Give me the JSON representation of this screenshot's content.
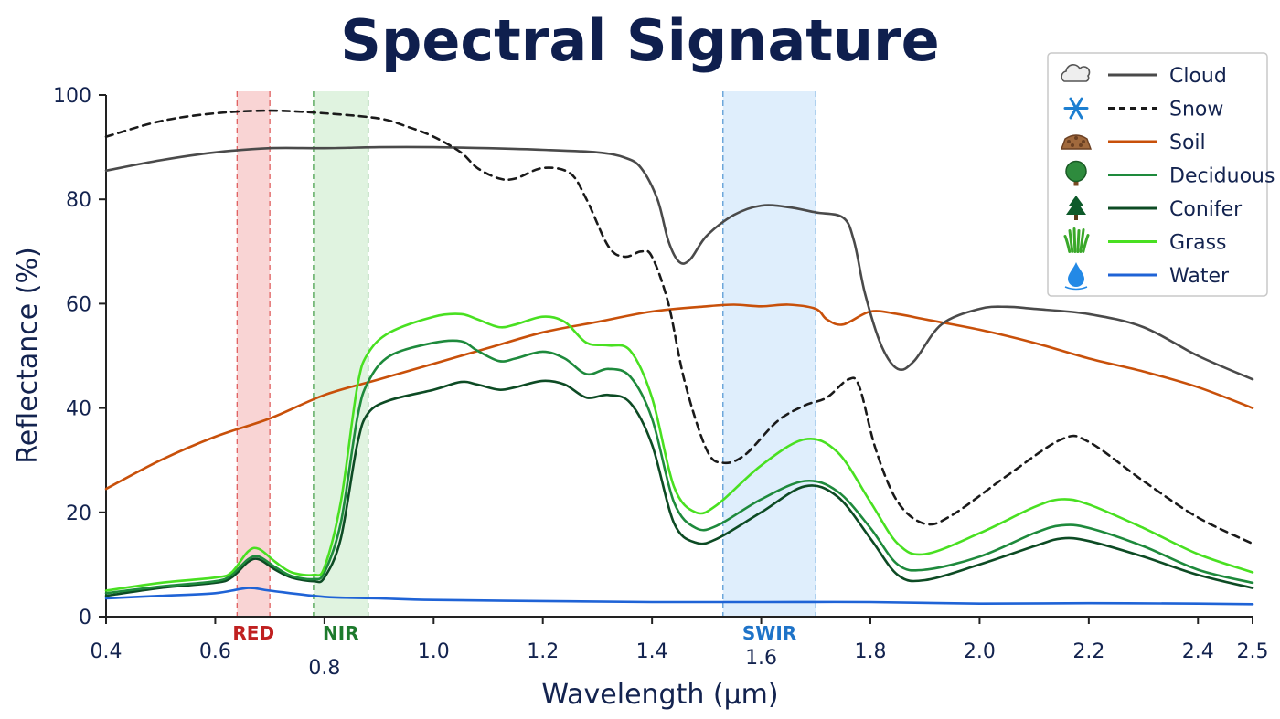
{
  "chart_data": {
    "type": "line",
    "title": "Spectral Signature",
    "xlabel": "Wavelength (µm)",
    "ylabel": "Reflectance (%)",
    "xlim": [
      0.4,
      2.5
    ],
    "ylim": [
      0,
      100
    ],
    "x_ticks": [
      "0.4",
      "0.6",
      "0.8",
      "1.0",
      "1.2",
      "1.4",
      "1.6",
      "1.8",
      "2.0",
      "2.2",
      "2.4",
      "2.5"
    ],
    "y_ticks": [
      "0",
      "20",
      "40",
      "60",
      "80",
      "100"
    ],
    "grid": false,
    "legend_position": "top-right",
    "bands": [
      {
        "label": "RED",
        "range": [
          0.64,
          0.7
        ],
        "color": "#f7c6c6",
        "edge": "#e06060",
        "text_color": "#c02020"
      },
      {
        "label": "NIR",
        "range": [
          0.78,
          0.88
        ],
        "color": "#d6efd6",
        "edge": "#49a04d",
        "text_color": "#1d7a2c"
      },
      {
        "label": "SWIR",
        "range": [
          1.53,
          1.7
        ],
        "color": "#d4e8fb",
        "edge": "#5a9bd5",
        "text_color": "#1e73c8"
      }
    ],
    "series": [
      {
        "name": "Cloud",
        "icon": "cloud-icon",
        "color": "#4a4a4a",
        "dash": "solid",
        "points": [
          [
            0.4,
            85.5
          ],
          [
            0.5,
            87.5
          ],
          [
            0.6,
            89
          ],
          [
            0.7,
            89.8
          ],
          [
            0.8,
            89.8
          ],
          [
            0.9,
            90
          ],
          [
            1.0,
            90
          ],
          [
            1.1,
            89.8
          ],
          [
            1.2,
            89.5
          ],
          [
            1.3,
            89
          ],
          [
            1.35,
            88
          ],
          [
            1.38,
            86
          ],
          [
            1.41,
            80
          ],
          [
            1.43,
            72
          ],
          [
            1.45,
            68
          ],
          [
            1.47,
            68.5
          ],
          [
            1.5,
            73
          ],
          [
            1.55,
            77
          ],
          [
            1.6,
            78.8
          ],
          [
            1.65,
            78.5
          ],
          [
            1.7,
            77.5
          ],
          [
            1.75,
            76.5
          ],
          [
            1.77,
            72
          ],
          [
            1.79,
            62
          ],
          [
            1.82,
            52
          ],
          [
            1.85,
            47.5
          ],
          [
            1.88,
            49
          ],
          [
            1.93,
            56
          ],
          [
            2.0,
            59
          ],
          [
            2.05,
            59.4
          ],
          [
            2.1,
            59
          ],
          [
            2.2,
            58
          ],
          [
            2.3,
            55.5
          ],
          [
            2.4,
            50
          ],
          [
            2.5,
            45.5
          ]
        ]
      },
      {
        "name": "Snow",
        "icon": "snowflake-icon",
        "color": "#1a1a1a",
        "dash": "dashed",
        "points": [
          [
            0.4,
            92
          ],
          [
            0.5,
            95
          ],
          [
            0.6,
            96.5
          ],
          [
            0.7,
            97
          ],
          [
            0.8,
            96.5
          ],
          [
            0.9,
            95.5
          ],
          [
            0.95,
            94
          ],
          [
            1.0,
            92
          ],
          [
            1.05,
            89
          ],
          [
            1.08,
            86
          ],
          [
            1.12,
            84
          ],
          [
            1.15,
            84
          ],
          [
            1.2,
            86
          ],
          [
            1.25,
            85
          ],
          [
            1.28,
            80
          ],
          [
            1.32,
            71
          ],
          [
            1.35,
            69
          ],
          [
            1.38,
            70
          ],
          [
            1.4,
            69
          ],
          [
            1.43,
            60
          ],
          [
            1.46,
            45
          ],
          [
            1.5,
            32
          ],
          [
            1.53,
            29.5
          ],
          [
            1.57,
            31
          ],
          [
            1.63,
            37.5
          ],
          [
            1.68,
            40.5
          ],
          [
            1.72,
            42
          ],
          [
            1.76,
            45.5
          ],
          [
            1.78,
            44
          ],
          [
            1.81,
            32
          ],
          [
            1.85,
            22
          ],
          [
            1.9,
            17.8
          ],
          [
            1.95,
            19.5
          ],
          [
            2.05,
            27
          ],
          [
            2.15,
            34
          ],
          [
            2.2,
            33.5
          ],
          [
            2.3,
            26
          ],
          [
            2.4,
            19
          ],
          [
            2.5,
            14
          ]
        ]
      },
      {
        "name": "Soil",
        "icon": "soil-icon",
        "color": "#c8500a",
        "dash": "solid",
        "points": [
          [
            0.4,
            24.5
          ],
          [
            0.5,
            30
          ],
          [
            0.6,
            34.5
          ],
          [
            0.7,
            38
          ],
          [
            0.8,
            42.5
          ],
          [
            0.9,
            45.5
          ],
          [
            1.0,
            48.5
          ],
          [
            1.1,
            51.5
          ],
          [
            1.2,
            54.5
          ],
          [
            1.3,
            56.5
          ],
          [
            1.4,
            58.5
          ],
          [
            1.5,
            59.5
          ],
          [
            1.55,
            59.8
          ],
          [
            1.6,
            59.5
          ],
          [
            1.65,
            59.8
          ],
          [
            1.7,
            59
          ],
          [
            1.72,
            57
          ],
          [
            1.75,
            56
          ],
          [
            1.8,
            58.5
          ],
          [
            1.85,
            58
          ],
          [
            1.9,
            57
          ],
          [
            2.0,
            55
          ],
          [
            2.1,
            52.5
          ],
          [
            2.2,
            49.5
          ],
          [
            2.3,
            47
          ],
          [
            2.4,
            44
          ],
          [
            2.5,
            40
          ]
        ]
      },
      {
        "name": "Deciduous",
        "icon": "deciduous-tree-icon",
        "color": "#1e8a3c",
        "dash": "solid",
        "points": [
          [
            0.4,
            4.5
          ],
          [
            0.5,
            5.8
          ],
          [
            0.6,
            6.8
          ],
          [
            0.63,
            8
          ],
          [
            0.66,
            11
          ],
          [
            0.68,
            11.5
          ],
          [
            0.71,
            9.5
          ],
          [
            0.74,
            7.8
          ],
          [
            0.78,
            7.2
          ],
          [
            0.8,
            8.5
          ],
          [
            0.83,
            18
          ],
          [
            0.86,
            38
          ],
          [
            0.88,
            45
          ],
          [
            0.92,
            50
          ],
          [
            1.0,
            52.5
          ],
          [
            1.05,
            52.8
          ],
          [
            1.08,
            51
          ],
          [
            1.12,
            49
          ],
          [
            1.15,
            49.5
          ],
          [
            1.2,
            50.8
          ],
          [
            1.24,
            49.5
          ],
          [
            1.28,
            46.5
          ],
          [
            1.32,
            47.5
          ],
          [
            1.36,
            46
          ],
          [
            1.4,
            38
          ],
          [
            1.44,
            22
          ],
          [
            1.48,
            17
          ],
          [
            1.52,
            17.5
          ],
          [
            1.6,
            22.5
          ],
          [
            1.68,
            26
          ],
          [
            1.74,
            24
          ],
          [
            1.8,
            17
          ],
          [
            1.85,
            10
          ],
          [
            1.9,
            9
          ],
          [
            2.0,
            11.5
          ],
          [
            2.1,
            16
          ],
          [
            2.15,
            17.5
          ],
          [
            2.2,
            17
          ],
          [
            2.3,
            13.5
          ],
          [
            2.4,
            9
          ],
          [
            2.5,
            6.5
          ]
        ]
      },
      {
        "name": "Conifer",
        "icon": "conifer-tree-icon",
        "color": "#0d4b24",
        "dash": "solid",
        "points": [
          [
            0.4,
            4
          ],
          [
            0.5,
            5.5
          ],
          [
            0.6,
            6.5
          ],
          [
            0.63,
            7.5
          ],
          [
            0.66,
            10.5
          ],
          [
            0.68,
            11
          ],
          [
            0.71,
            9
          ],
          [
            0.74,
            7.5
          ],
          [
            0.78,
            6.8
          ],
          [
            0.8,
            7.5
          ],
          [
            0.83,
            15
          ],
          [
            0.86,
            33
          ],
          [
            0.88,
            39
          ],
          [
            0.92,
            41.5
          ],
          [
            1.0,
            43.5
          ],
          [
            1.05,
            45
          ],
          [
            1.08,
            44.5
          ],
          [
            1.12,
            43.5
          ],
          [
            1.15,
            44
          ],
          [
            1.2,
            45.2
          ],
          [
            1.24,
            44.5
          ],
          [
            1.28,
            42
          ],
          [
            1.32,
            42.5
          ],
          [
            1.36,
            41
          ],
          [
            1.4,
            33
          ],
          [
            1.44,
            18
          ],
          [
            1.48,
            14.2
          ],
          [
            1.52,
            15
          ],
          [
            1.6,
            20
          ],
          [
            1.68,
            25
          ],
          [
            1.74,
            23
          ],
          [
            1.8,
            15
          ],
          [
            1.85,
            8
          ],
          [
            1.9,
            7
          ],
          [
            2.0,
            10
          ],
          [
            2.1,
            13.5
          ],
          [
            2.15,
            15
          ],
          [
            2.2,
            14.5
          ],
          [
            2.3,
            11.5
          ],
          [
            2.4,
            8
          ],
          [
            2.5,
            5.5
          ]
        ]
      },
      {
        "name": "Grass",
        "icon": "grass-icon",
        "color": "#49e021",
        "dash": "solid",
        "points": [
          [
            0.4,
            5
          ],
          [
            0.5,
            6.5
          ],
          [
            0.6,
            7.5
          ],
          [
            0.63,
            8.5
          ],
          [
            0.66,
            12.5
          ],
          [
            0.68,
            13
          ],
          [
            0.71,
            10.5
          ],
          [
            0.74,
            8.5
          ],
          [
            0.78,
            8
          ],
          [
            0.8,
            9.5
          ],
          [
            0.83,
            22
          ],
          [
            0.86,
            44
          ],
          [
            0.88,
            50.5
          ],
          [
            0.92,
            54.5
          ],
          [
            1.0,
            57.5
          ],
          [
            1.05,
            58
          ],
          [
            1.08,
            57
          ],
          [
            1.12,
            55.5
          ],
          [
            1.15,
            56
          ],
          [
            1.2,
            57.5
          ],
          [
            1.24,
            56.5
          ],
          [
            1.28,
            52.5
          ],
          [
            1.32,
            52
          ],
          [
            1.36,
            51
          ],
          [
            1.4,
            42
          ],
          [
            1.44,
            25
          ],
          [
            1.48,
            20
          ],
          [
            1.52,
            21.5
          ],
          [
            1.6,
            29
          ],
          [
            1.68,
            34
          ],
          [
            1.74,
            31.5
          ],
          [
            1.8,
            22
          ],
          [
            1.85,
            14
          ],
          [
            1.9,
            12
          ],
          [
            2.0,
            16
          ],
          [
            2.1,
            21
          ],
          [
            2.15,
            22.5
          ],
          [
            2.2,
            21.5
          ],
          [
            2.3,
            17
          ],
          [
            2.4,
            12
          ],
          [
            2.5,
            8.5
          ]
        ]
      },
      {
        "name": "Water",
        "icon": "water-drop-icon",
        "color": "#1f63d6",
        "dash": "solid",
        "points": [
          [
            0.4,
            3.5
          ],
          [
            0.5,
            4
          ],
          [
            0.6,
            4.5
          ],
          [
            0.66,
            5.5
          ],
          [
            0.7,
            5
          ],
          [
            0.8,
            3.8
          ],
          [
            0.9,
            3.5
          ],
          [
            1.0,
            3.2
          ],
          [
            1.2,
            3
          ],
          [
            1.4,
            2.8
          ],
          [
            1.6,
            2.8
          ],
          [
            1.8,
            2.8
          ],
          [
            2.0,
            2.5
          ],
          [
            2.2,
            2.6
          ],
          [
            2.4,
            2.5
          ],
          [
            2.5,
            2.4
          ]
        ]
      }
    ]
  }
}
